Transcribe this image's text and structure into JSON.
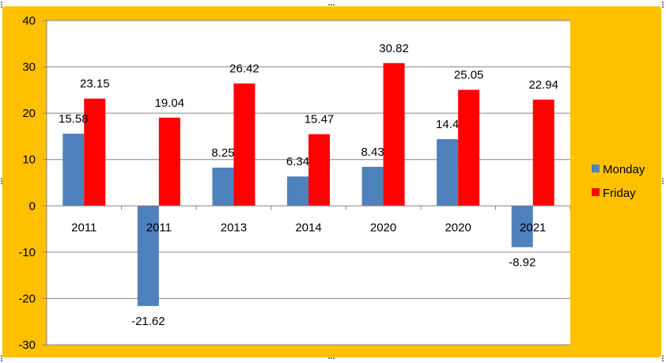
{
  "chart_data": {
    "type": "bar",
    "categories": [
      "2011",
      "2011",
      "2013",
      "2014",
      "2020",
      "2020",
      "2021"
    ],
    "series": [
      {
        "name": "Monday",
        "color": "#4f81bd",
        "values": [
          15.58,
          -21.62,
          8.25,
          6.34,
          8.43,
          14.4,
          -8.92
        ],
        "labels": [
          "15.58",
          "-21.62",
          "8.25",
          "6.34",
          "8.43",
          "14.4",
          "-8.92"
        ]
      },
      {
        "name": "Friday",
        "color": "#ff0000",
        "values": [
          23.15,
          19.04,
          26.42,
          15.47,
          30.82,
          25.05,
          22.94
        ],
        "labels": [
          "23.15",
          "19.04",
          "26.42",
          "15.47",
          "30.82",
          "25.05",
          "22.94"
        ]
      }
    ],
    "ylim": [
      -30,
      40
    ],
    "yticks": [
      40,
      30,
      20,
      10,
      0,
      -10,
      -20,
      -30
    ],
    "ytick_labels": [
      "40",
      "30",
      "20",
      "10",
      "0",
      "-10",
      "-20",
      "-30"
    ],
    "grid": true,
    "legend_position": "right",
    "title": "",
    "xlabel": "",
    "ylabel": ""
  },
  "colors": {
    "chart_area_background": "#ffc000",
    "plot_area_background": "#ffffff",
    "gridline": "#868686",
    "axis": "#868686"
  }
}
